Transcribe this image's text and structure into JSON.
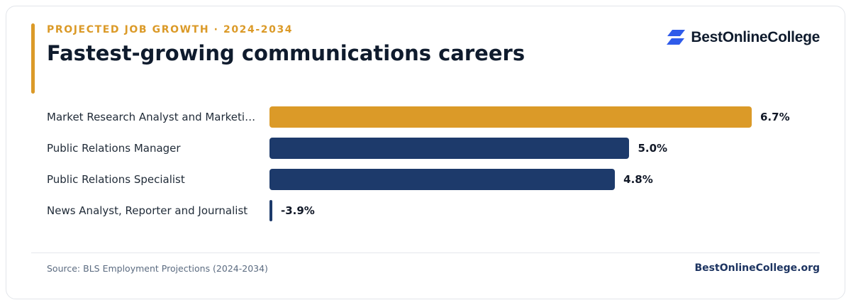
{
  "header": {
    "eyebrow": "PROJECTED JOB GROWTH · 2024-2034",
    "title": "Fastest-growing communications careers"
  },
  "brand": {
    "name": "BestOnlineCollege",
    "icon": "stacked-parallelogram-logo-icon",
    "color": "#2F5BEA"
  },
  "colors": {
    "accent": "#DB9A28",
    "primary": "#1D3A6B"
  },
  "chart_data": {
    "type": "bar",
    "orientation": "horizontal",
    "title": "Fastest-growing communications careers",
    "subtitle": "PROJECTED JOB GROWTH · 2024-2034",
    "categories": [
      "Market Research Analyst and Marketing Specialist",
      "Public Relations Manager",
      "Public Relations Specialist",
      "News Analyst, Reporter and Journalist"
    ],
    "category_labels": [
      "Market Research Analyst and Marketi…",
      "Public Relations Manager",
      "Public Relations Specialist",
      "News Analyst, Reporter and Journalist"
    ],
    "values": [
      6.7,
      5.0,
      4.8,
      -3.9
    ],
    "value_labels": [
      "6.7%",
      "5.0%",
      "4.8%",
      "-3.9%"
    ],
    "highlight_index": 0,
    "xlim": [
      0,
      6.7
    ],
    "grid": false,
    "legend": "none"
  },
  "footer": {
    "source": "Source: BLS Employment Projections (2024-2034)",
    "site": "BestOnlineCollege.org"
  }
}
